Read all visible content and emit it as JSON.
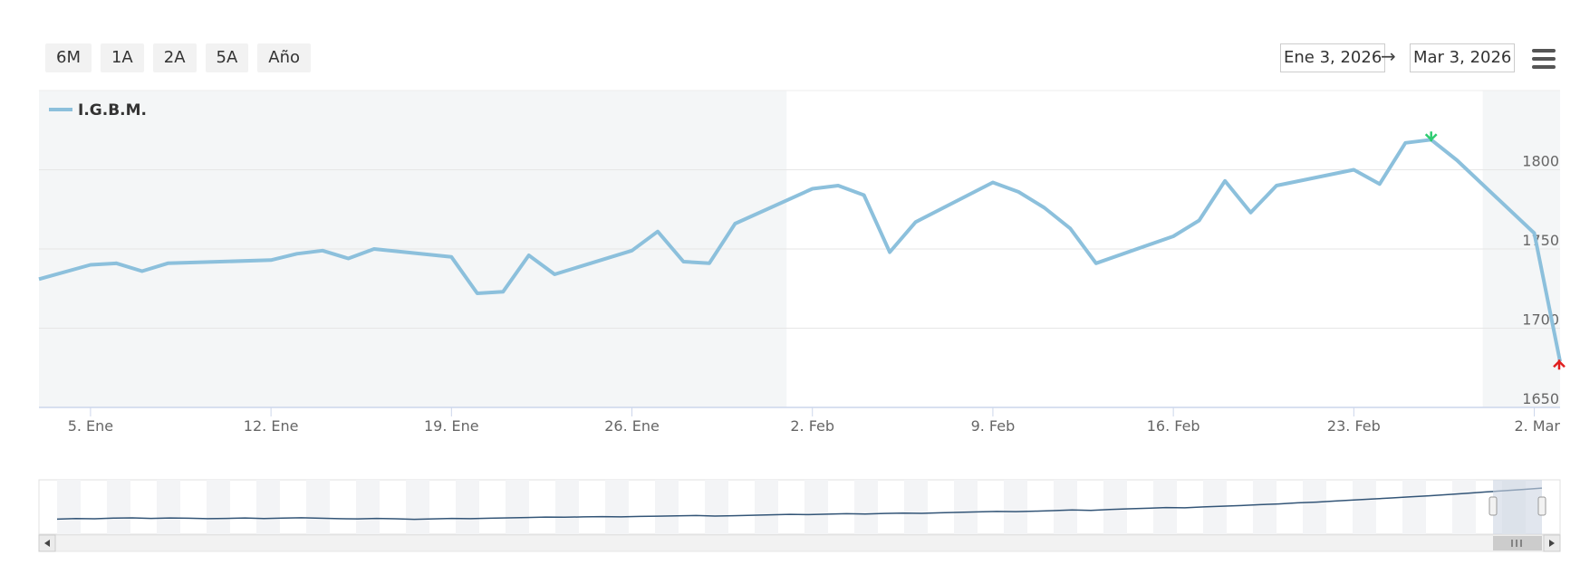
{
  "range_selector": {
    "buttons": [
      "6M",
      "1A",
      "2A",
      "5A",
      "Año"
    ],
    "from_date": "Ene 3, 2026",
    "arrow": "→",
    "to_date": "Mar 3, 2026"
  },
  "menu_icon": "hamburger-menu-icon",
  "colors": {
    "series": "#8cc0dc",
    "shaded_band": "#f4f6f7",
    "grid": "#e6e6e6",
    "navigator_series": "#335577",
    "navigator_mask": "#cdd6e3",
    "max_marker": "#2ecc71",
    "min_marker": "#e02020"
  },
  "chart_data": {
    "type": "line",
    "title": "",
    "xlabel": "",
    "ylabel": "",
    "legend_position": "top-left",
    "grid": true,
    "ylim": [
      1650,
      1850
    ],
    "x_range": [
      "2026-01-03",
      "2026-03-03"
    ],
    "x_tick_labels": [
      "5. Ene",
      "12. Ene",
      "19. Ene",
      "26. Ene",
      "2. Feb",
      "9. Feb",
      "16. Feb",
      "23. Feb",
      "2. Mar"
    ],
    "x_tick_dates": [
      "2026-01-05",
      "2026-01-12",
      "2026-01-19",
      "2026-01-26",
      "2026-02-02",
      "2026-02-09",
      "2026-02-16",
      "2026-02-23",
      "2026-03-02"
    ],
    "y_tick_labels": [
      "1800",
      "1750",
      "1700",
      "1650"
    ],
    "y_ticks": [
      1800,
      1750,
      1700,
      1650
    ],
    "shaded_bands": [
      [
        "2026-01-03",
        "2026-02-01"
      ],
      [
        "2026-02-28",
        "2026-03-03"
      ]
    ],
    "series": [
      {
        "name": "I.G.B.M.",
        "points": [
          [
            "2026-01-03",
            1731
          ],
          [
            "2026-01-05",
            1740
          ],
          [
            "2026-01-06",
            1741
          ],
          [
            "2026-01-07",
            1736
          ],
          [
            "2026-01-08",
            1741
          ],
          [
            "2026-01-12",
            1743
          ],
          [
            "2026-01-13",
            1747
          ],
          [
            "2026-01-14",
            1749
          ],
          [
            "2026-01-15",
            1744
          ],
          [
            "2026-01-16",
            1750
          ],
          [
            "2026-01-19",
            1745
          ],
          [
            "2026-01-20",
            1722
          ],
          [
            "2026-01-21",
            1723
          ],
          [
            "2026-01-22",
            1746
          ],
          [
            "2026-01-23",
            1734
          ],
          [
            "2026-01-26",
            1749
          ],
          [
            "2026-01-27",
            1761
          ],
          [
            "2026-01-28",
            1742
          ],
          [
            "2026-01-29",
            1741
          ],
          [
            "2026-01-30",
            1766
          ],
          [
            "2026-02-02",
            1788
          ],
          [
            "2026-02-03",
            1790
          ],
          [
            "2026-02-04",
            1784
          ],
          [
            "2026-02-05",
            1748
          ],
          [
            "2026-02-06",
            1767
          ],
          [
            "2026-02-09",
            1792
          ],
          [
            "2026-02-10",
            1786
          ],
          [
            "2026-02-11",
            1776
          ],
          [
            "2026-02-12",
            1763
          ],
          [
            "2026-02-13",
            1741
          ],
          [
            "2026-02-16",
            1758
          ],
          [
            "2026-02-17",
            1768
          ],
          [
            "2026-02-18",
            1793
          ],
          [
            "2026-02-19",
            1773
          ],
          [
            "2026-02-20",
            1790
          ],
          [
            "2026-02-23",
            1800
          ],
          [
            "2026-02-24",
            1791
          ],
          [
            "2026-02-25",
            1817
          ],
          [
            "2026-02-26",
            1819
          ],
          [
            "2026-02-27",
            1806
          ],
          [
            "2026-03-02",
            1760
          ],
          [
            "2026-03-03",
            1679
          ]
        ]
      }
    ],
    "markers": [
      {
        "type": "max",
        "date": "2026-02-26",
        "value": 1819
      },
      {
        "type": "min",
        "date": "2026-03-03",
        "value": 1679
      }
    ]
  },
  "navigator": {
    "scrollbar_grip_icon": "grip-icon",
    "left_arrow_icon": "arrow-left-icon",
    "right_arrow_icon": "arrow-right-icon",
    "history_values": [
      1560,
      1565,
      1563,
      1568,
      1570,
      1566,
      1569,
      1567,
      1564,
      1566,
      1569,
      1565,
      1568,
      1571,
      1567,
      1564,
      1562,
      1566,
      1563,
      1559,
      1562,
      1566,
      1564,
      1567,
      1570,
      1573,
      1576,
      1575,
      1578,
      1580,
      1578,
      1581,
      1583,
      1586,
      1588,
      1584,
      1587,
      1590,
      1594,
      1597,
      1595,
      1599,
      1602,
      1600,
      1604,
      1607,
      1605,
      1609,
      1613,
      1616,
      1620,
      1618,
      1622,
      1626,
      1631,
      1628,
      1635,
      1640,
      1644,
      1650,
      1648,
      1655,
      1660,
      1665,
      1672,
      1678,
      1686,
      1692,
      1700,
      1708,
      1716,
      1724,
      1733,
      1741,
      1750,
      1760,
      1770,
      1780,
      1790,
      1800
    ]
  }
}
